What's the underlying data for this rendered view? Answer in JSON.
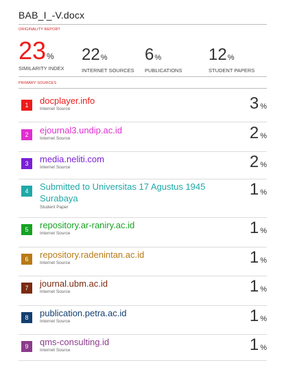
{
  "document": {
    "title": "BAB_I_-V.docx"
  },
  "originality_report": {
    "heading": "ORIGINALITY REPORT",
    "stats": [
      {
        "value": "23",
        "unit": "%",
        "label": "SIMILARITY INDEX"
      },
      {
        "value": "22",
        "unit": "%",
        "label": "INTERNET SOURCES"
      },
      {
        "value": "6",
        "unit": "%",
        "label": "PUBLICATIONS"
      },
      {
        "value": "12",
        "unit": "%",
        "label": "STUDENT PAPERS"
      }
    ],
    "accent_color": "#ee1b1b"
  },
  "primary_sources": {
    "heading": "PRIMARY SOURCES",
    "items": [
      {
        "rank": "1",
        "name": "docplayer.info",
        "type": "Internet Source",
        "percent": "3",
        "unit": "%",
        "color": "#ee1b1b"
      },
      {
        "rank": "2",
        "name": "ejournal3.undip.ac.id",
        "type": "Internet Source",
        "percent": "2",
        "unit": "%",
        "color": "#e02ecf"
      },
      {
        "rank": "3",
        "name": "media.neliti.com",
        "type": "Internet Source",
        "percent": "2",
        "unit": "%",
        "color": "#7a1fd6"
      },
      {
        "rank": "4",
        "name": "Submitted to Universitas 17 Agustus 1945 Surabaya",
        "type": "Student Paper",
        "percent": "1",
        "unit": "%",
        "color": "#1fa8a8"
      },
      {
        "rank": "5",
        "name": "repository.ar-raniry.ac.id",
        "type": "Internet Source",
        "percent": "1",
        "unit": "%",
        "color": "#16a324"
      },
      {
        "rank": "6",
        "name": "repository.radenintan.ac.id",
        "type": "Internet Source",
        "percent": "1",
        "unit": "%",
        "color": "#b87a15"
      },
      {
        "rank": "7",
        "name": "journal.ubm.ac.id",
        "type": "Internet Source",
        "percent": "1",
        "unit": "%",
        "color": "#7a2a10"
      },
      {
        "rank": "8",
        "name": "publication.petra.ac.id",
        "type": "Internet Source",
        "percent": "1",
        "unit": "%",
        "color": "#133f70"
      },
      {
        "rank": "9",
        "name": "qms-consulting.id",
        "type": "Internet Source",
        "percent": "1",
        "unit": "%",
        "color": "#8c3b8c"
      }
    ]
  }
}
